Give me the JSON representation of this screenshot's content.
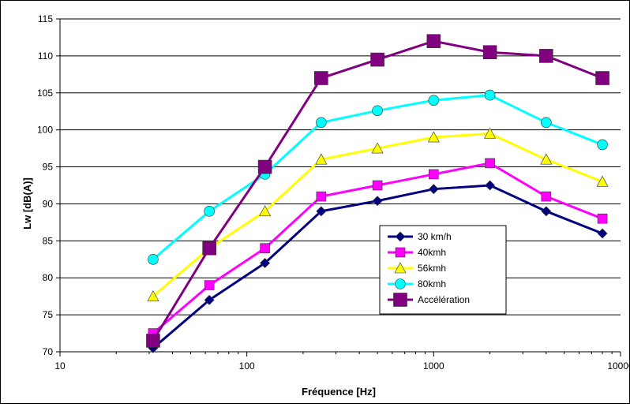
{
  "chart_data": {
    "type": "line",
    "xscale": "log",
    "xlabel": "Fréquence [Hz]",
    "ylabel": "Lw [dB(A)]",
    "xlim": [
      10,
      10000
    ],
    "ylim": [
      70,
      115
    ],
    "yticks": [
      70,
      75,
      80,
      85,
      90,
      95,
      100,
      105,
      110,
      115
    ],
    "xticks": [
      10,
      100,
      1000,
      10000
    ],
    "xtick_labels": [
      "10",
      "100",
      "1000",
      "10000"
    ],
    "grid": "horizontal",
    "legend_position": "lower-right",
    "x": [
      31.5,
      63,
      125,
      250,
      500,
      1000,
      2000,
      4000,
      8000
    ],
    "series": [
      {
        "name": "30 km/h",
        "color": "#000080",
        "marker": "diamond",
        "values": [
          70.5,
          77,
          82,
          89,
          90.4,
          92,
          92.5,
          89,
          86
        ]
      },
      {
        "name": "40kmh",
        "color": "#ff00ff",
        "marker": "square",
        "values": [
          72.5,
          79,
          84,
          91,
          92.5,
          94,
          95.5,
          91,
          88
        ]
      },
      {
        "name": "56kmh",
        "color": "#ffff00",
        "marker": "triangle",
        "values": [
          77.5,
          84,
          89,
          96,
          97.5,
          99,
          99.5,
          96,
          93
        ]
      },
      {
        "name": "80kmh",
        "color": "#00ffff",
        "marker": "circle",
        "values": [
          82.5,
          89,
          94,
          101,
          102.6,
          104,
          104.7,
          101,
          98
        ]
      },
      {
        "name": "Accélération",
        "color": "#800080",
        "marker": "bigsquare",
        "values": [
          71.5,
          84,
          95,
          107,
          109.5,
          112,
          110.5,
          110,
          107
        ]
      }
    ]
  }
}
